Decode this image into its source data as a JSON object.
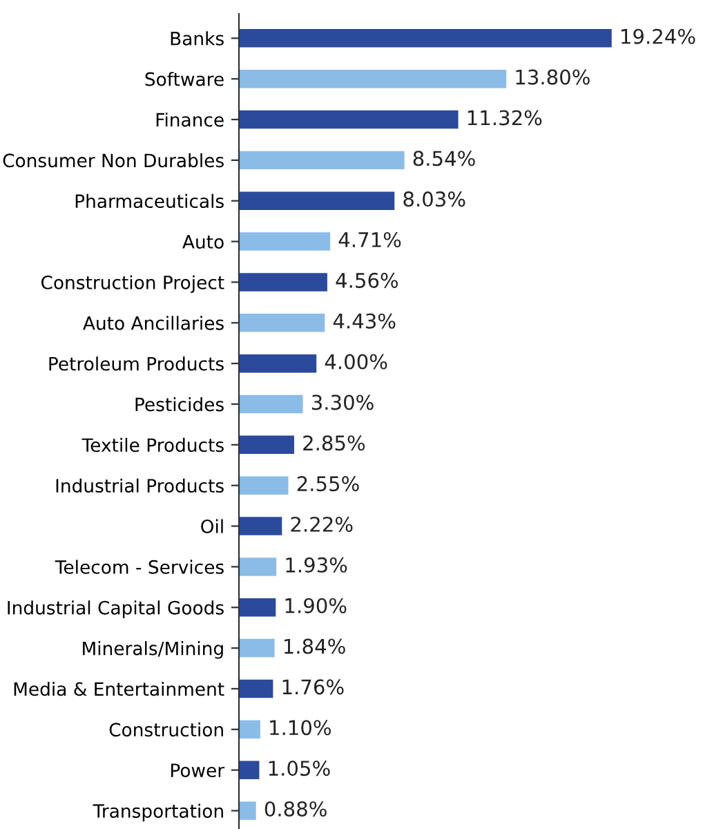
{
  "chart_data": {
    "type": "bar",
    "orientation": "horizontal",
    "categories": [
      "Banks",
      "Software",
      "Finance",
      "Consumer Non Durables",
      "Pharmaceuticals",
      "Auto",
      "Construction Project",
      "Auto Ancillaries",
      "Petroleum Products",
      "Pesticides",
      "Textile Products",
      "Industrial Products",
      "Oil",
      "Telecom - Services",
      "Industrial Capital Goods",
      "Minerals/Mining",
      "Media & Entertainment",
      "Construction",
      "Power",
      "Transportation"
    ],
    "values": [
      19.24,
      13.8,
      11.32,
      8.54,
      8.03,
      4.71,
      4.56,
      4.43,
      4.0,
      3.3,
      2.85,
      2.55,
      2.22,
      1.93,
      1.9,
      1.84,
      1.76,
      1.1,
      1.05,
      0.88
    ],
    "colors": [
      "#2b4a9c",
      "#8bbce8",
      "#2b4a9c",
      "#8bbce8",
      "#2b4a9c",
      "#8bbce8",
      "#2b4a9c",
      "#8bbce8",
      "#2b4a9c",
      "#8bbce8",
      "#2b4a9c",
      "#8bbce8",
      "#2b4a9c",
      "#8bbce8",
      "#2b4a9c",
      "#8bbce8",
      "#2b4a9c",
      "#8bbce8",
      "#2b4a9c",
      "#8bbce8"
    ],
    "value_labels": [
      "19.24%",
      "13.80%",
      "11.32%",
      "8.54%",
      "8.03%",
      "4.71%",
      "4.56%",
      "4.43%",
      "4.00%",
      "3.30%",
      "2.85%",
      "2.55%",
      "2.22%",
      "1.93%",
      "1.90%",
      "1.84%",
      "1.76%",
      "1.10%",
      "1.05%",
      "0.88%"
    ],
    "grid": false,
    "legend": false
  }
}
